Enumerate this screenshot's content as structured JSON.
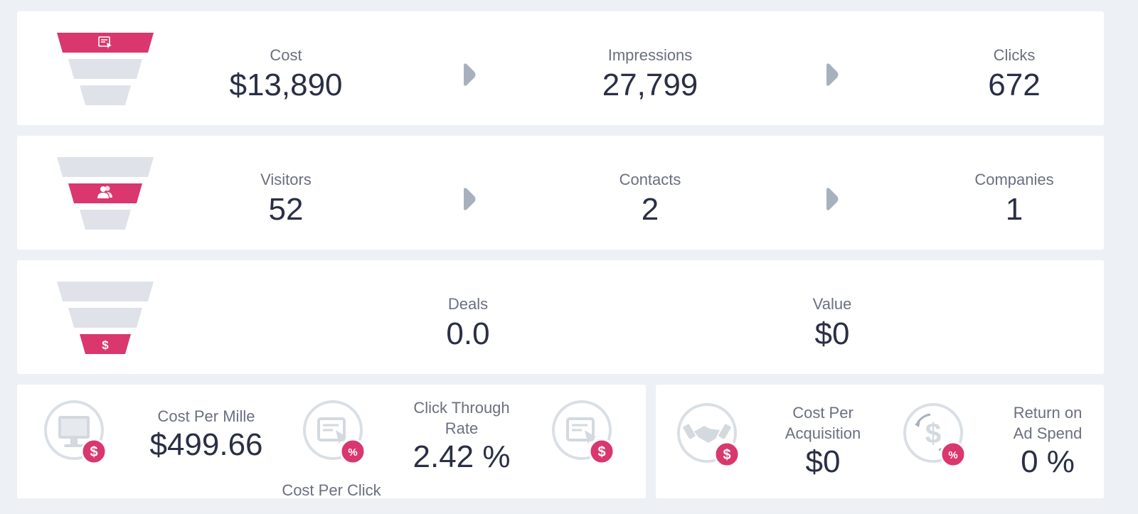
{
  "row1": {
    "metrics": [
      {
        "label": "Cost",
        "value": "$13,890"
      },
      {
        "label": "Impressions",
        "value": "27,799"
      },
      {
        "label": "Clicks",
        "value": "672"
      }
    ],
    "icon": "cursor-window-icon"
  },
  "row2": {
    "metrics": [
      {
        "label": "Visitors",
        "value": "52"
      },
      {
        "label": "Contacts",
        "value": "2"
      },
      {
        "label": "Companies",
        "value": "1"
      }
    ],
    "icon": "users-icon"
  },
  "row3": {
    "metrics": [
      {
        "label": "Deals",
        "value": "0.0"
      },
      {
        "label": "Value",
        "value": "$0"
      }
    ],
    "icon": "dollar-icon"
  },
  "kpis_left": {
    "cpm": {
      "label": "Cost Per Mille",
      "value": "$499.66"
    },
    "ctr": {
      "label_line1": "Click Through",
      "label_line2": "Rate",
      "value": "2.42 %"
    },
    "cpc": {
      "label": "Cost Per Click"
    }
  },
  "kpis_right": {
    "cpa": {
      "label_line1": "Cost Per",
      "label_line2": "Acquisition",
      "value": "$0"
    },
    "roas": {
      "label_line1": "Return on",
      "label_line2": "Ad Spend",
      "value": "0 %"
    }
  },
  "colors": {
    "accent": "#d9376e",
    "funnel_inactive": "#dfe3e9",
    "icon_gray": "#d3d9df",
    "background": "#edf1f5"
  }
}
